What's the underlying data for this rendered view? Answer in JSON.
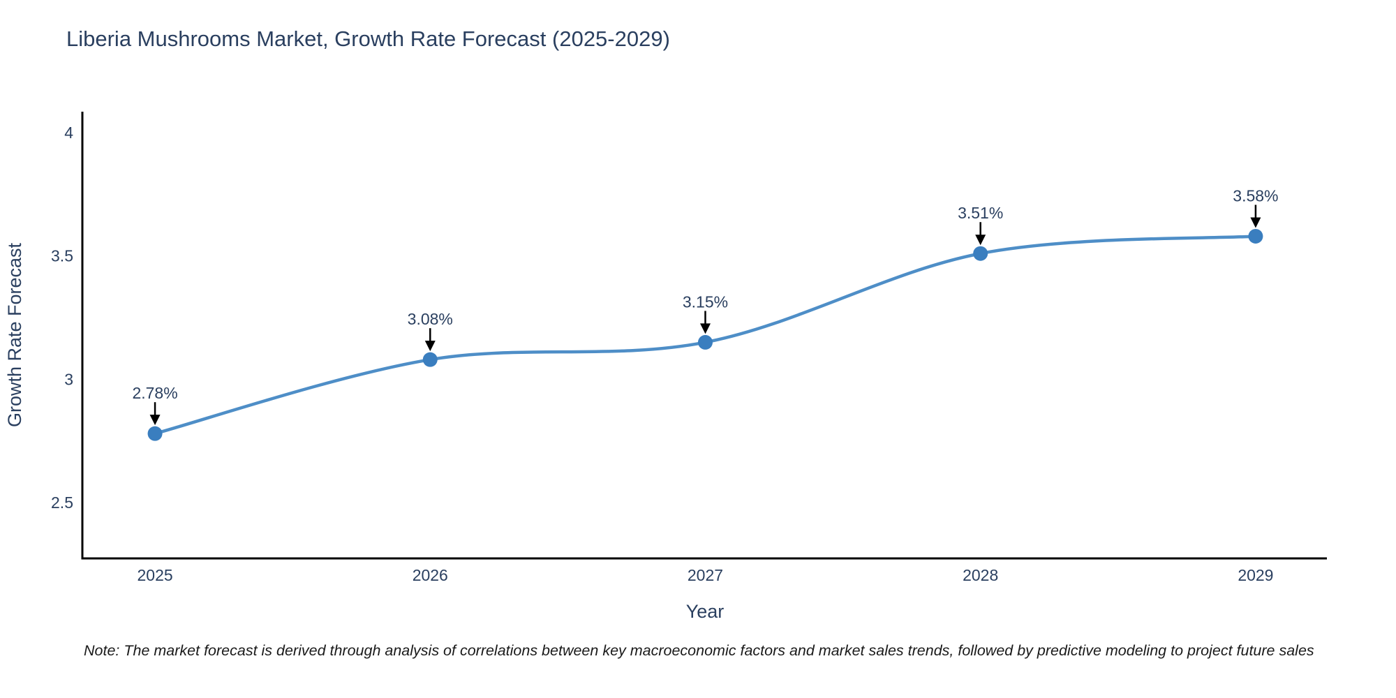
{
  "title": "Liberia Mushrooms Market, Growth Rate Forecast (2025-2029)",
  "note": "Note: The market forecast is derived through analysis of correlations between key macroeconomic factors and market sales trends, followed by predictive modeling to project future sales",
  "chart_data": {
    "type": "line",
    "title": "Liberia Mushrooms Market, Growth Rate Forecast (2025-2029)",
    "xlabel": "Year",
    "ylabel": "Growth Rate Forecast",
    "x": [
      2025,
      2026,
      2027,
      2028,
      2029
    ],
    "values": [
      2.78,
      3.08,
      3.15,
      3.51,
      3.58
    ],
    "point_labels": [
      "2.78%",
      "3.08%",
      "3.15%",
      "3.51%",
      "3.58%"
    ],
    "yticks": [
      2.5,
      3,
      3.5,
      4
    ],
    "ylim": [
      2.274,
      4.085
    ],
    "xlim": [
      2024.736,
      2029.259
    ],
    "line_shape": "spline",
    "grid": false,
    "legend_position": "none",
    "colors": {
      "line": "#4e8ec7",
      "marker": "#3a7ebf",
      "axis": "#000000",
      "text": "#2a3f5f",
      "arrow": "#000000"
    }
  }
}
